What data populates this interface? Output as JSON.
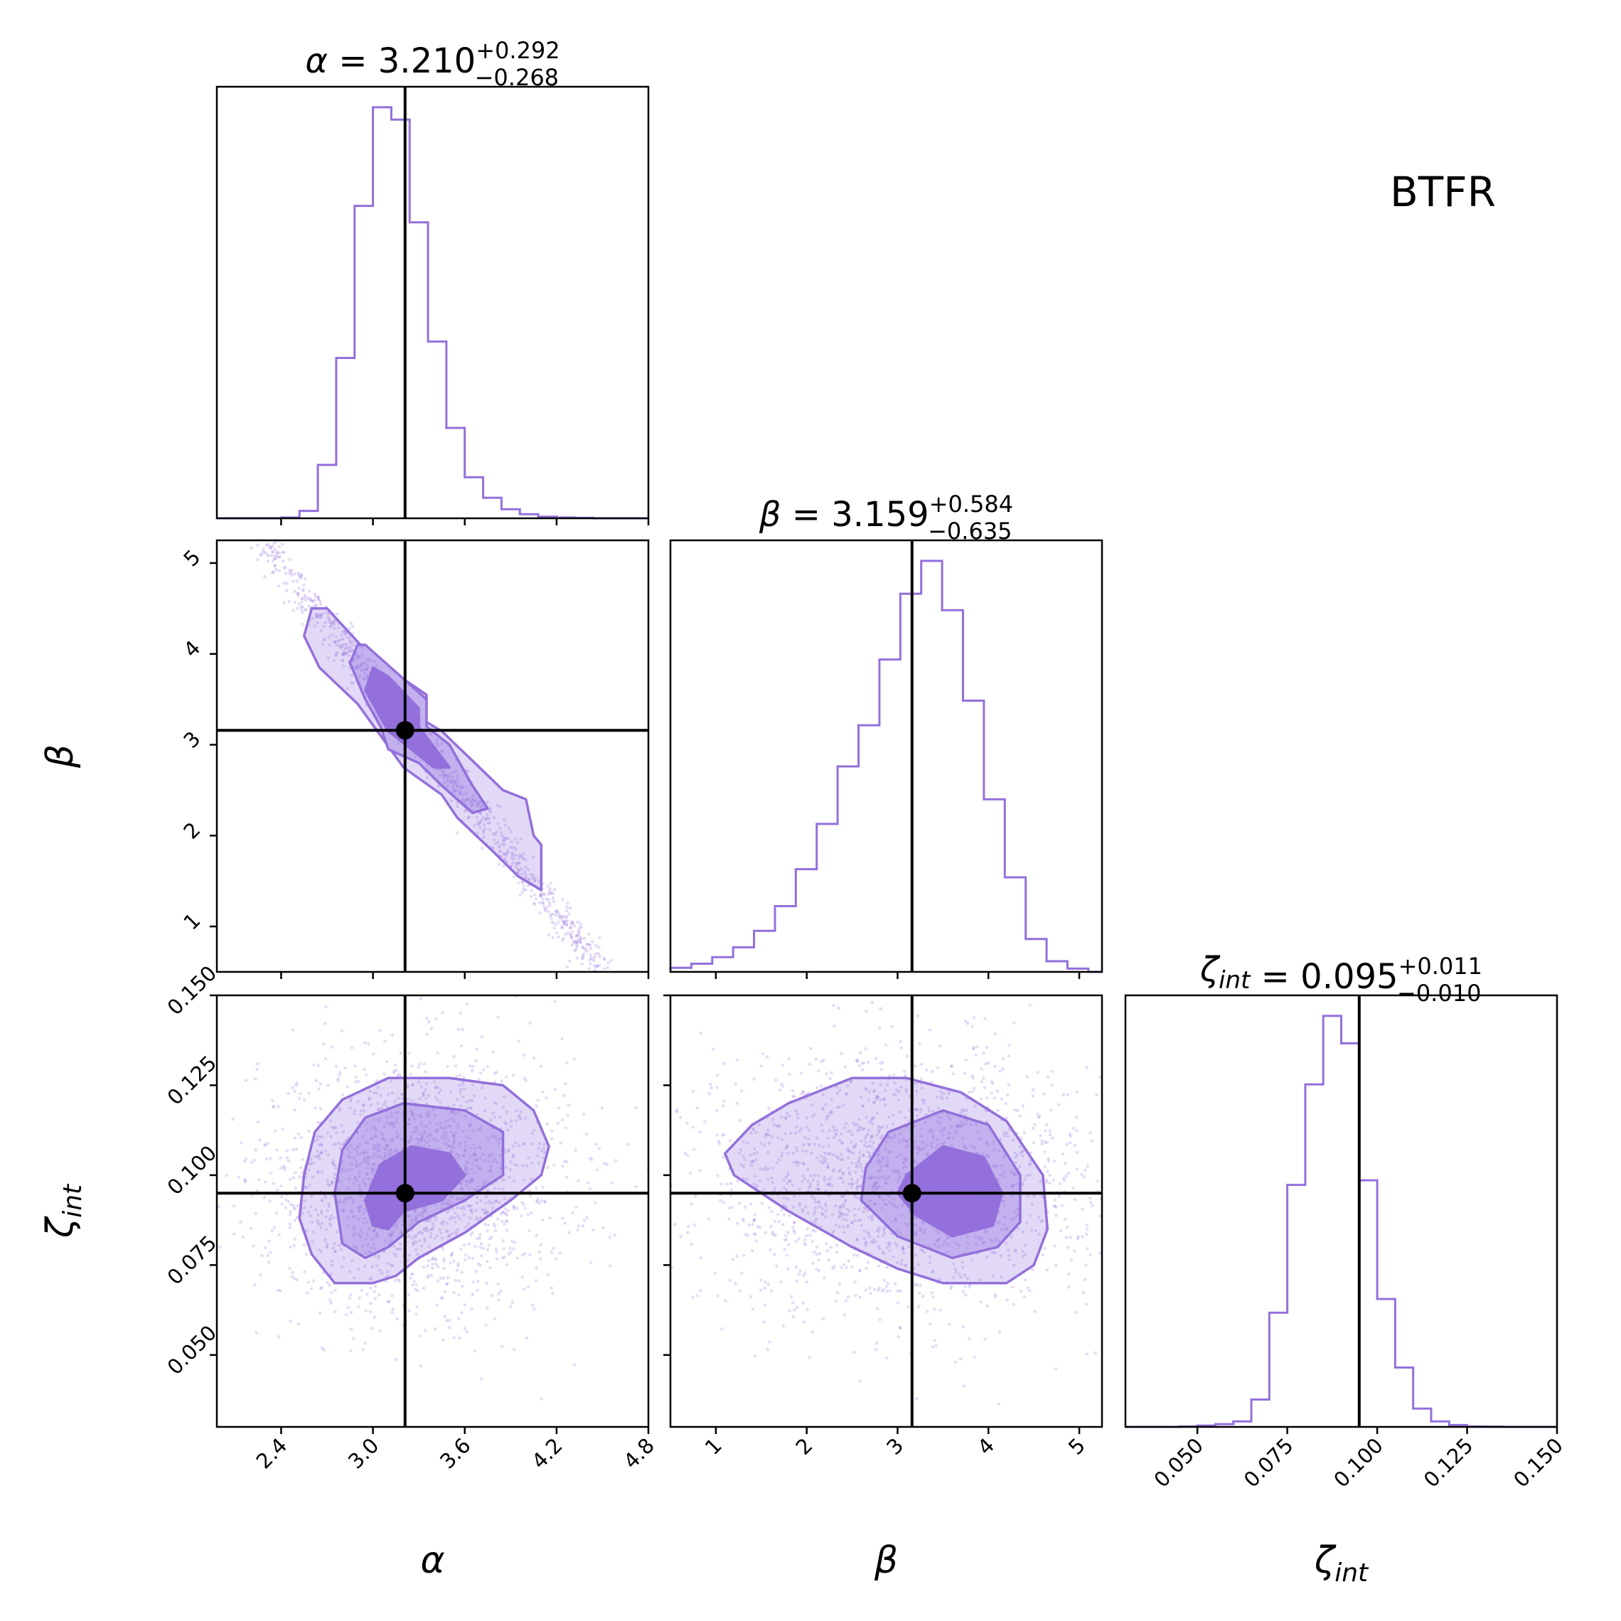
{
  "chart_data": {
    "type": "corner",
    "label": "BTFR",
    "colors": {
      "series": "#9370db",
      "truth": "#000000"
    },
    "parameters": [
      {
        "symbol": "α",
        "sub": "",
        "median": "3.210",
        "plus": "+0.292",
        "minus": "−0.268",
        "median_value": 3.21,
        "range": [
          1.98,
          4.8
        ],
        "ticks": [
          2.4,
          3.0,
          3.6,
          4.2,
          4.8
        ],
        "tick_labels": [
          "2.4",
          "3.0",
          "3.6",
          "4.2",
          "4.8"
        ]
      },
      {
        "symbol": "β",
        "sub": "",
        "median": "3.159",
        "plus": "+0.584",
        "minus": "−0.635",
        "median_value": 3.159,
        "range": [
          0.5,
          5.25
        ],
        "ticks": [
          1,
          2,
          3,
          4,
          5
        ],
        "tick_labels": [
          "1",
          "2",
          "3",
          "4",
          "5"
        ]
      },
      {
        "symbol": "ζ",
        "sub": "int",
        "median": "0.095",
        "plus": "+0.011",
        "minus": "−0.010",
        "median_value": 0.095,
        "range": [
          0.03,
          0.15
        ],
        "ticks": [
          0.05,
          0.075,
          0.1,
          0.125,
          0.15
        ],
        "tick_labels": [
          "0.050",
          "0.075",
          "0.100",
          "0.125",
          "0.150"
        ]
      }
    ],
    "histograms": [
      {
        "param": "α",
        "bin_edges": [
          2.4,
          2.52,
          2.64,
          2.76,
          2.88,
          3.0,
          3.12,
          3.24,
          3.36,
          3.48,
          3.6,
          3.72,
          3.84,
          3.96,
          4.08,
          4.2,
          4.32,
          4.44
        ],
        "counts": [
          0.002,
          0.018,
          0.13,
          0.39,
          0.76,
          1.0,
          0.97,
          0.72,
          0.43,
          0.22,
          0.1,
          0.05,
          0.022,
          0.01,
          0.004,
          0.002,
          0.001
        ]
      },
      {
        "param": "β",
        "bin_edges": [
          0.5,
          0.73,
          0.96,
          1.19,
          1.42,
          1.65,
          1.88,
          2.11,
          2.34,
          2.57,
          2.8,
          3.03,
          3.26,
          3.49,
          3.72,
          3.95,
          4.18,
          4.41,
          4.64,
          4.87,
          5.1
        ],
        "counts": [
          0.005,
          0.01,
          0.018,
          0.03,
          0.05,
          0.08,
          0.125,
          0.18,
          0.25,
          0.3,
          0.38,
          0.46,
          0.5,
          0.44,
          0.33,
          0.21,
          0.115,
          0.04,
          0.013,
          0.004
        ]
      },
      {
        "param": "ζ_int",
        "bin_edges": [
          0.045,
          0.05,
          0.055,
          0.06,
          0.065,
          0.07,
          0.075,
          0.08,
          0.085,
          0.09,
          0.095,
          0.1,
          0.105,
          0.11,
          0.115,
          0.12,
          0.125,
          0.13,
          0.135
        ],
        "counts": [
          0.001,
          0.003,
          0.006,
          0.012,
          0.06,
          0.25,
          0.53,
          0.75,
          0.9,
          0.84,
          0.54,
          0.28,
          0.13,
          0.04,
          0.012,
          0.004,
          0.001,
          0.0005
        ]
      }
    ],
    "pairs": [
      {
        "x": "α",
        "y": "β",
        "truth": [
          3.21,
          3.159
        ],
        "contours": [
          [
            [
              2.6,
              4.5
            ],
            [
              2.7,
              4.5
            ],
            [
              3.0,
              3.95
            ],
            [
              3.35,
              3.55
            ],
            [
              3.35,
              3.25
            ],
            [
              3.45,
              3.15
            ],
            [
              3.85,
              2.5
            ],
            [
              4.0,
              2.4
            ],
            [
              4.05,
              2.0
            ],
            [
              4.1,
              1.9
            ],
            [
              4.1,
              1.4
            ],
            [
              3.95,
              1.55
            ],
            [
              3.8,
              1.8
            ],
            [
              3.55,
              2.2
            ],
            [
              3.45,
              2.45
            ],
            [
              3.2,
              2.75
            ],
            [
              3.05,
              3.1
            ],
            [
              2.9,
              3.45
            ],
            [
              2.65,
              3.85
            ],
            [
              2.55,
              4.2
            ]
          ],
          [
            [
              2.9,
              4.1
            ],
            [
              2.95,
              4.1
            ],
            [
              3.35,
              3.5
            ],
            [
              3.35,
              3.2
            ],
            [
              3.5,
              3.0
            ],
            [
              3.65,
              2.55
            ],
            [
              3.75,
              2.3
            ],
            [
              3.65,
              2.25
            ],
            [
              3.45,
              2.55
            ],
            [
              3.3,
              2.8
            ],
            [
              3.1,
              2.95
            ],
            [
              3.05,
              3.2
            ],
            [
              2.95,
              3.5
            ],
            [
              2.85,
              3.9
            ]
          ],
          [
            [
              3.0,
              3.85
            ],
            [
              3.1,
              3.75
            ],
            [
              3.3,
              3.4
            ],
            [
              3.3,
              3.2
            ],
            [
              3.5,
              2.75
            ],
            [
              3.4,
              2.75
            ],
            [
              3.25,
              2.95
            ],
            [
              3.1,
              3.15
            ],
            [
              2.95,
              3.6
            ]
          ]
        ],
        "scatter_line": [
          [
            2.3,
            5.2
          ],
          [
            4.5,
            0.5
          ]
        ]
      },
      {
        "x": "α",
        "y": "ζ_int",
        "truth": [
          3.21,
          0.095
        ],
        "contours": [
          [
            [
              2.55,
              0.1
            ],
            [
              2.62,
              0.112
            ],
            [
              2.8,
              0.121
            ],
            [
              3.1,
              0.127
            ],
            [
              3.5,
              0.127
            ],
            [
              3.85,
              0.125
            ],
            [
              4.05,
              0.118
            ],
            [
              4.15,
              0.108
            ],
            [
              4.1,
              0.1
            ],
            [
              3.9,
              0.093
            ],
            [
              3.6,
              0.084
            ],
            [
              3.3,
              0.077
            ],
            [
              3.15,
              0.072
            ],
            [
              3.0,
              0.07
            ],
            [
              2.75,
              0.07
            ],
            [
              2.6,
              0.078
            ],
            [
              2.52,
              0.088
            ]
          ],
          [
            [
              2.75,
              0.095
            ],
            [
              2.8,
              0.107
            ],
            [
              2.95,
              0.116
            ],
            [
              3.2,
              0.12
            ],
            [
              3.6,
              0.118
            ],
            [
              3.85,
              0.112
            ],
            [
              3.85,
              0.1
            ],
            [
              3.6,
              0.093
            ],
            [
              3.3,
              0.087
            ],
            [
              3.1,
              0.08
            ],
            [
              2.95,
              0.077
            ],
            [
              2.8,
              0.081
            ]
          ],
          [
            [
              2.95,
              0.093
            ],
            [
              3.05,
              0.103
            ],
            [
              3.25,
              0.108
            ],
            [
              3.5,
              0.106
            ],
            [
              3.6,
              0.1
            ],
            [
              3.45,
              0.093
            ],
            [
              3.2,
              0.09
            ],
            [
              3.1,
              0.085
            ],
            [
              3.0,
              0.086
            ]
          ]
        ]
      },
      {
        "x": "β",
        "y": "ζ_int",
        "truth": [
          3.159,
          0.095
        ],
        "contours": [
          [
            [
              1.1,
              0.106
            ],
            [
              1.4,
              0.114
            ],
            [
              1.8,
              0.12
            ],
            [
              2.5,
              0.127
            ],
            [
              3.1,
              0.127
            ],
            [
              3.7,
              0.123
            ],
            [
              4.2,
              0.115
            ],
            [
              4.6,
              0.1
            ],
            [
              4.65,
              0.085
            ],
            [
              4.5,
              0.075
            ],
            [
              4.2,
              0.07
            ],
            [
              3.5,
              0.07
            ],
            [
              3.0,
              0.074
            ],
            [
              2.5,
              0.08
            ],
            [
              1.8,
              0.09
            ],
            [
              1.2,
              0.1
            ]
          ],
          [
            [
              2.65,
              0.102
            ],
            [
              2.9,
              0.112
            ],
            [
              3.5,
              0.118
            ],
            [
              4.0,
              0.114
            ],
            [
              4.35,
              0.1
            ],
            [
              4.35,
              0.087
            ],
            [
              4.1,
              0.08
            ],
            [
              3.6,
              0.077
            ],
            [
              3.0,
              0.083
            ],
            [
              2.6,
              0.093
            ]
          ],
          [
            [
              3.1,
              0.1
            ],
            [
              3.5,
              0.108
            ],
            [
              3.95,
              0.105
            ],
            [
              4.15,
              0.095
            ],
            [
              4.05,
              0.086
            ],
            [
              3.6,
              0.083
            ],
            [
              3.2,
              0.089
            ],
            [
              3.0,
              0.095
            ]
          ]
        ]
      }
    ]
  }
}
